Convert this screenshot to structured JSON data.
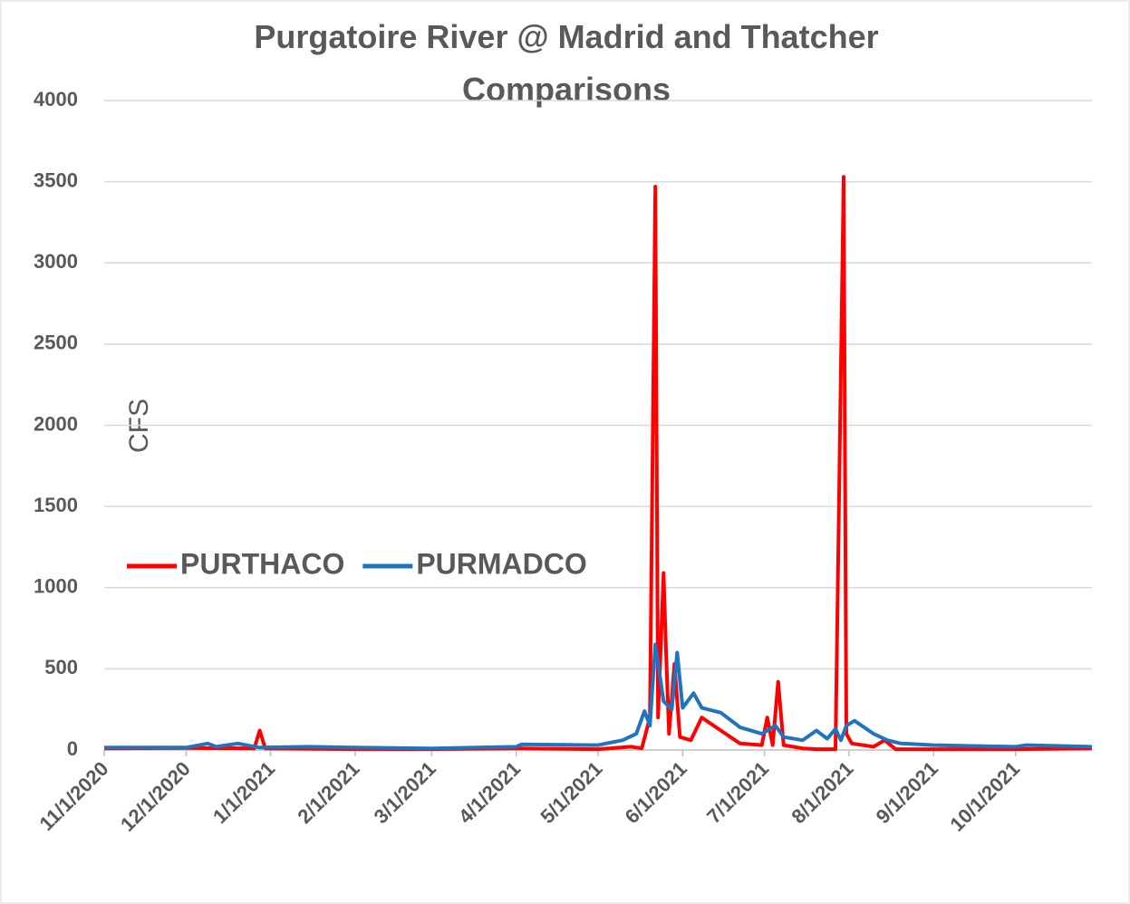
{
  "chart_data": {
    "type": "line",
    "title": "Purgatoire River @ Madrid and Thatcher Comparisons",
    "y_label": "CFS",
    "xlim": [
      "11/1/2020",
      "10/29/2021"
    ],
    "xticks": [
      "11/1/2020",
      "12/1/2020",
      "1/1/2021",
      "2/1/2021",
      "3/1/2021",
      "4/1/2021",
      "5/1/2021",
      "6/1/2021",
      "7/1/2021",
      "8/1/2021",
      "9/1/2021",
      "10/1/2021"
    ],
    "ylim": [
      0,
      4000
    ],
    "yticks": [
      0,
      500,
      1000,
      1500,
      2000,
      2500,
      3000,
      3500,
      4000
    ],
    "grid": true,
    "legend": "center-left",
    "series": [
      {
        "name": "PURTHACO",
        "color": "#ff0000",
        "x": [
          "11/1/2020",
          "12/1/2020",
          "12/26/2020",
          "12/28/2020",
          "12/30/2020",
          "2/1/2021",
          "3/1/2021",
          "4/1/2021",
          "5/1/2021",
          "5/13/2021",
          "5/17/2021",
          "5/20/2021",
          "5/22/2021",
          "5/23/2021",
          "5/25/2021",
          "5/26/2021",
          "5/27/2021",
          "5/29/2021",
          "5/31/2021",
          "6/4/2021",
          "6/8/2021",
          "6/15/2021",
          "6/22/2021",
          "6/30/2021",
          "7/2/2021",
          "7/4/2021",
          "7/6/2021",
          "7/8/2021",
          "7/15/2021",
          "7/20/2021",
          "7/27/2021",
          "7/30/2021",
          "7/31/2021",
          "8/2/2021",
          "8/10/2021",
          "8/14/2021",
          "8/18/2021",
          "9/1/2021",
          "10/1/2021",
          "10/29/2021"
        ],
        "values": [
          10,
          12,
          10,
          120,
          10,
          5,
          5,
          10,
          5,
          20,
          10,
          200,
          3470,
          200,
          1090,
          560,
          100,
          530,
          80,
          60,
          200,
          120,
          40,
          30,
          200,
          30,
          420,
          30,
          10,
          5,
          5,
          3530,
          100,
          40,
          20,
          60,
          5,
          5,
          5,
          10
        ]
      },
      {
        "name": "PURMADCO",
        "color": "#1f74c2",
        "x": [
          "11/1/2020",
          "12/1/2020",
          "12/9/2020",
          "12/12/2020",
          "12/20/2020",
          "12/28/2020",
          "1/15/2021",
          "2/1/2021",
          "3/1/2021",
          "4/1/2021",
          "4/3/2021",
          "5/1/2021",
          "5/10/2021",
          "5/15/2021",
          "5/18/2021",
          "5/20/2021",
          "5/22/2021",
          "5/25/2021",
          "5/28/2021",
          "5/30/2021",
          "6/1/2021",
          "6/5/2021",
          "6/8/2021",
          "6/15/2021",
          "6/22/2021",
          "6/30/2021",
          "7/5/2021",
          "7/8/2021",
          "7/15/2021",
          "7/20/2021",
          "7/24/2021",
          "7/27/2021",
          "7/29/2021",
          "7/31/2021",
          "8/3/2021",
          "8/10/2021",
          "8/15/2021",
          "8/20/2021",
          "9/1/2021",
          "9/15/2021",
          "10/1/2021",
          "10/5/2021",
          "10/29/2021"
        ],
        "values": [
          15,
          15,
          40,
          20,
          40,
          15,
          20,
          15,
          10,
          20,
          35,
          30,
          60,
          100,
          240,
          150,
          650,
          300,
          250,
          600,
          260,
          350,
          260,
          230,
          140,
          100,
          150,
          80,
          60,
          120,
          70,
          130,
          60,
          150,
          180,
          100,
          60,
          40,
          30,
          25,
          20,
          30,
          20
        ]
      }
    ]
  }
}
